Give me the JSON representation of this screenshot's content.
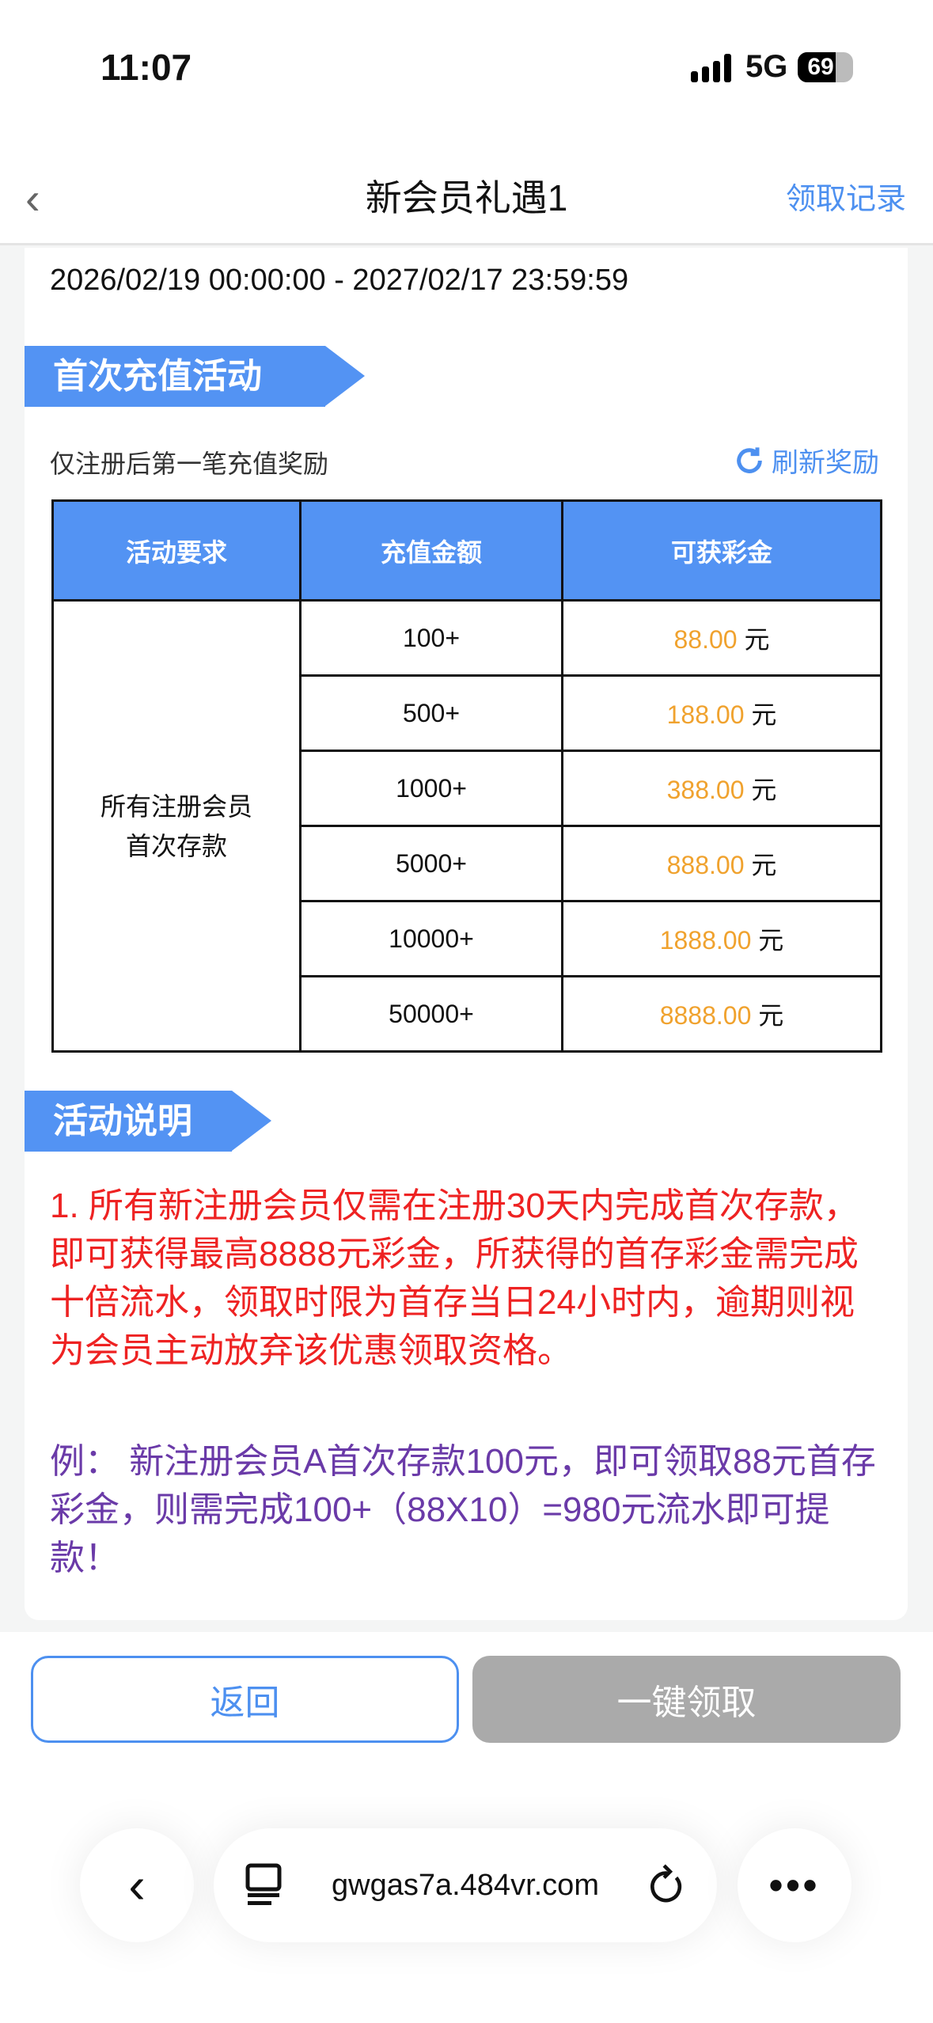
{
  "status": {
    "time": "11:07",
    "network": "5G",
    "battery": "69"
  },
  "nav": {
    "title": "新会员礼遇1",
    "records": "领取记录"
  },
  "date_range": "2026/02/19 00:00:00 - 2027/02/17 23:59:59",
  "section1": {
    "title": "首次充值活动",
    "subtitle": "仅注册后第一笔充值奖励",
    "refresh": "刷新奖励"
  },
  "table": {
    "headers": [
      "活动要求",
      "充值金额",
      "可获彩金"
    ],
    "requirement": "所有注册会员\n首次存款",
    "unit": "元",
    "rows": [
      {
        "amount": "100+",
        "bonus": "88.00"
      },
      {
        "amount": "500+",
        "bonus": "188.00"
      },
      {
        "amount": "1000+",
        "bonus": "388.00"
      },
      {
        "amount": "5000+",
        "bonus": "888.00"
      },
      {
        "amount": "10000+",
        "bonus": "1888.00"
      },
      {
        "amount": "50000+",
        "bonus": "8888.00"
      }
    ]
  },
  "section2": {
    "title": "活动说明",
    "rule": "1. 所有新注册会员仅需在注册30天内完成首次存款，即可获得最高8888元彩金，所获得的首存彩金需完成十倍流水，领取时限为首存当日24小时内，逾期则视为会员主动放弃该优惠领取资格。",
    "example": "例： 新注册会员A首次存款100元，即可领取88元首存彩金，则需完成100+（88X10）=980元流水即可提款！"
  },
  "buttons": {
    "back": "返回",
    "claim": "一键领取"
  },
  "browser": {
    "url": "gwgas7a.484vr.com"
  },
  "colors": {
    "accent": "#5393f3",
    "bonus": "#f0a22e",
    "rule": "#ee2222",
    "example": "#6a3aa8"
  }
}
